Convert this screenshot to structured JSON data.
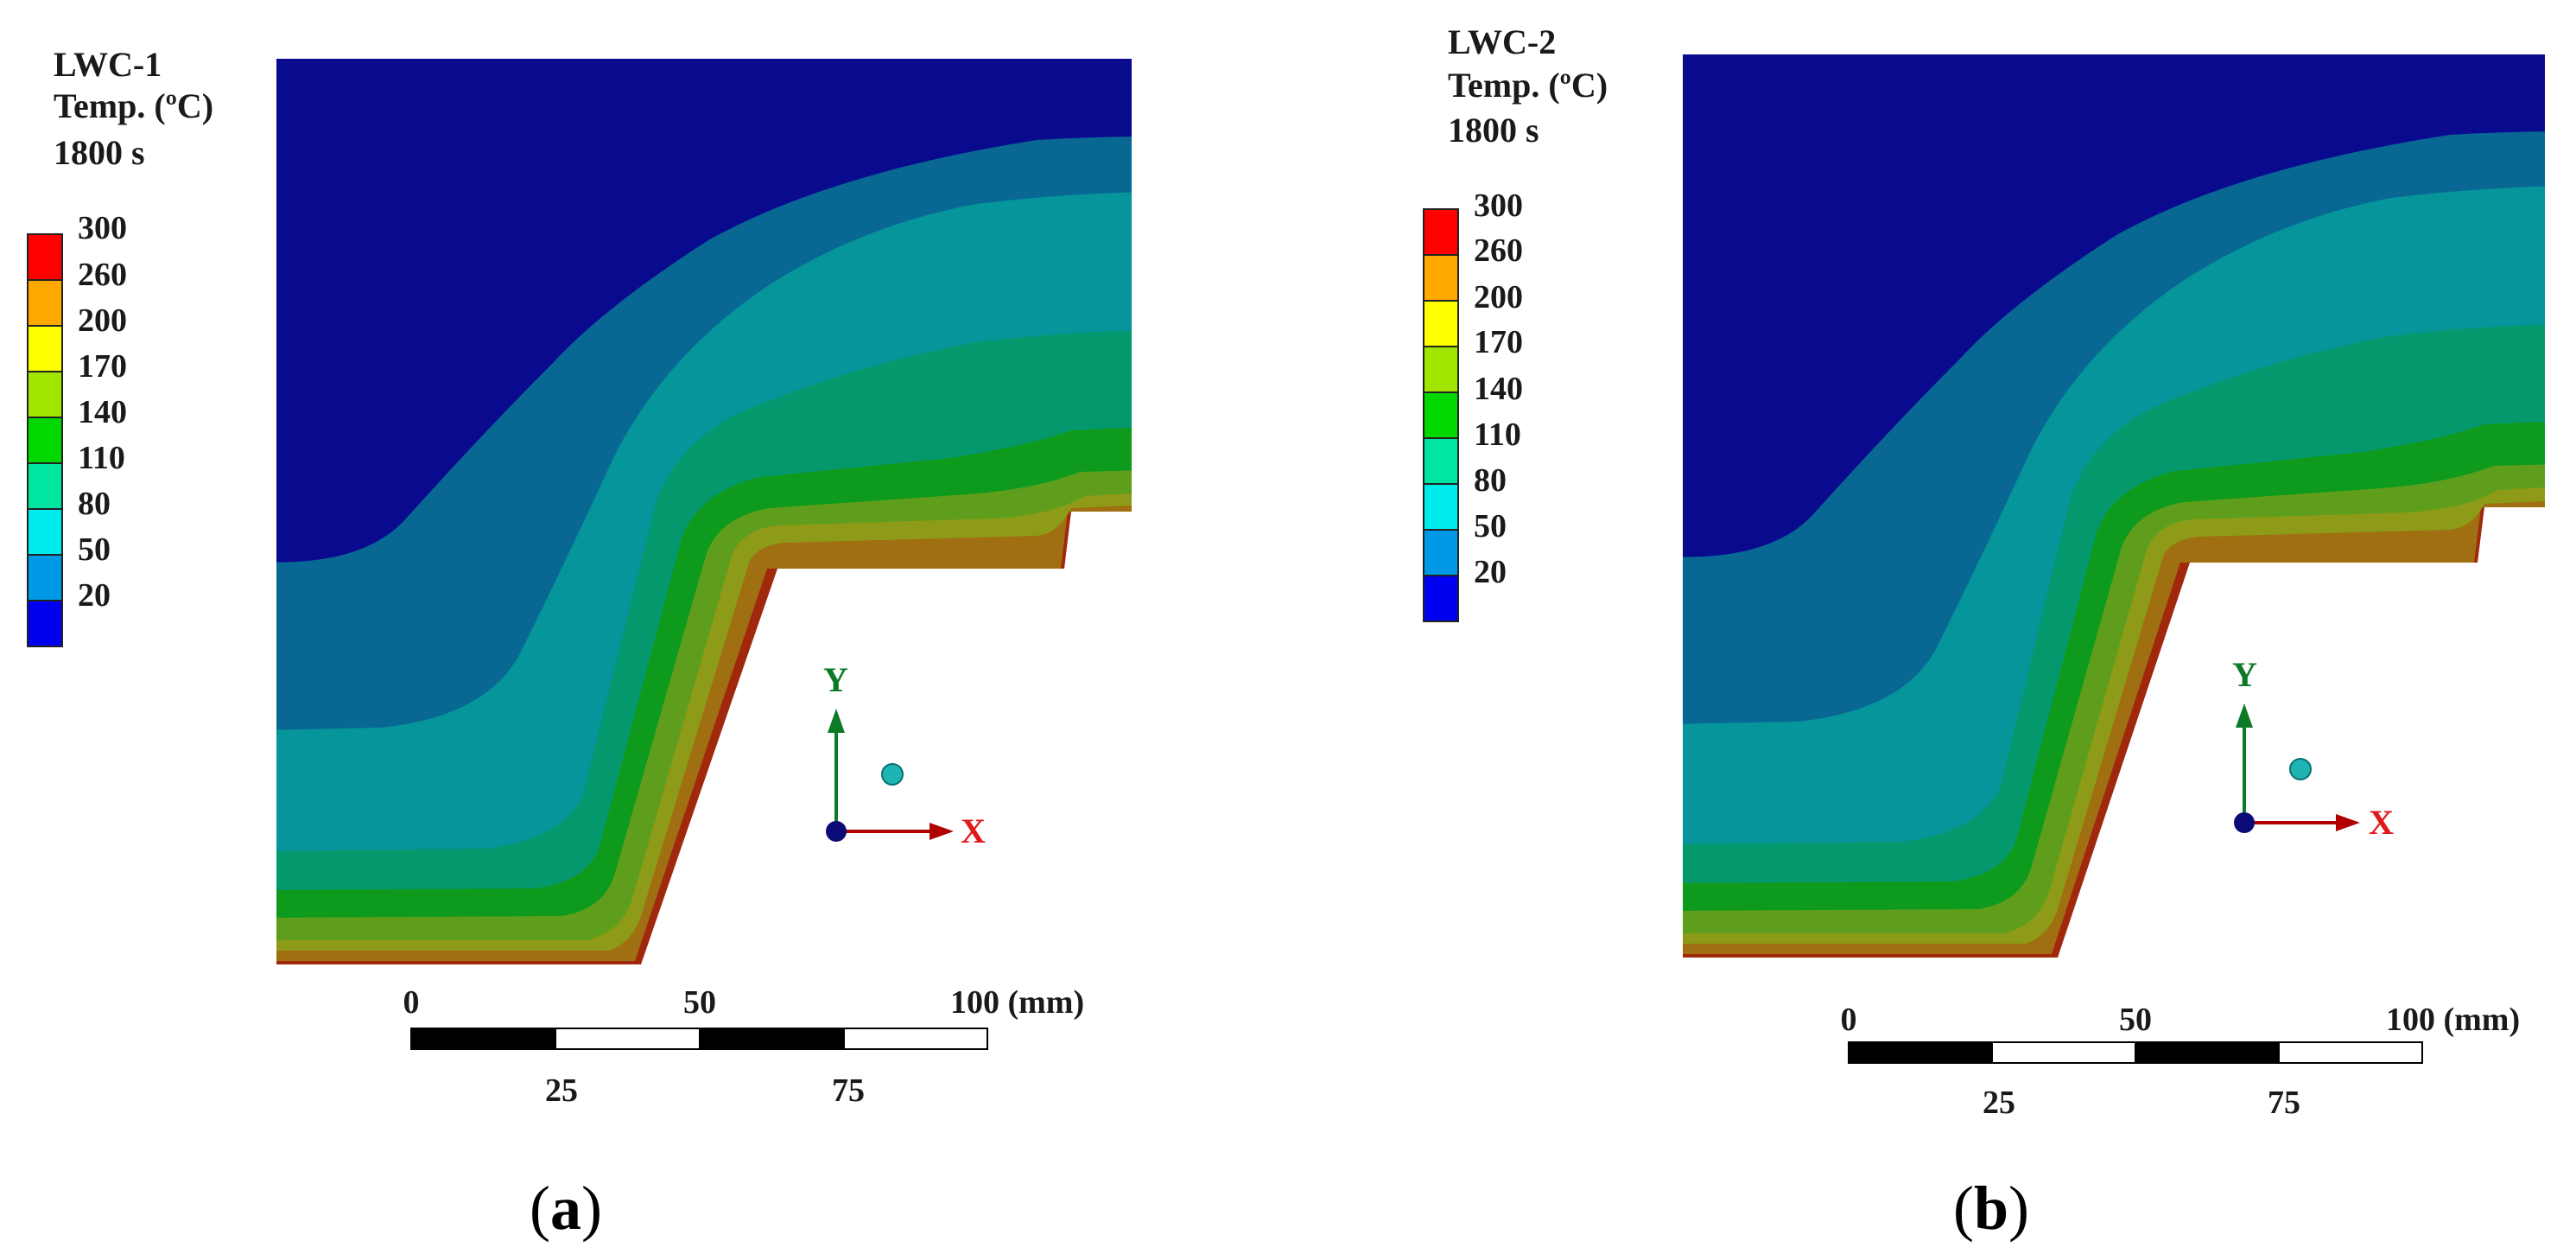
{
  "palette": {
    "c0": "#0a0a8f",
    "c1": "#086893",
    "c2": "#05959a",
    "c3": "#06986d",
    "c4": "#0e9a1c",
    "c5": "#5f9e1c",
    "c6": "#8e9b18",
    "c7": "#a06f12",
    "c8": "#a0280c",
    "legend_colors": [
      "#0000f0",
      "#0099e6",
      "#00ecec",
      "#00e6a0",
      "#00d800",
      "#a2e600",
      "#ffff00",
      "#ffa800",
      "#ff0000"
    ],
    "axis_y": "#0d7a26",
    "axis_x": "#b00000",
    "axis_x_label": "#e01a1a",
    "origin": "#0b0b78",
    "sphere": "#1fb4b4",
    "sphere_stroke": "#0a7070"
  },
  "legend_values": [
    "20",
    "50",
    "80",
    "110",
    "140",
    "170",
    "200",
    "260",
    "300"
  ],
  "panels": [
    {
      "id": "a",
      "specimen": "LWC-1",
      "quantity": "Temp. (ºC)",
      "time": "1800 s",
      "caption_open": "(",
      "caption_letter": "a",
      "caption_close": ")",
      "scale_top": [
        "0",
        "50",
        "100 (mm)"
      ],
      "scale_bottom": [
        "25",
        "75"
      ],
      "axis_y": "Y",
      "axis_x": "X"
    },
    {
      "id": "b",
      "specimen": "LWC-2",
      "quantity": "Temp. (ºC)",
      "time": "1800 s",
      "caption_open": "(",
      "caption_letter": "b",
      "caption_close": ")",
      "scale_top": [
        "0",
        "50",
        "100 (mm)"
      ],
      "scale_bottom": [
        "25",
        "75"
      ],
      "axis_y": "Y",
      "axis_x": "X"
    }
  ]
}
